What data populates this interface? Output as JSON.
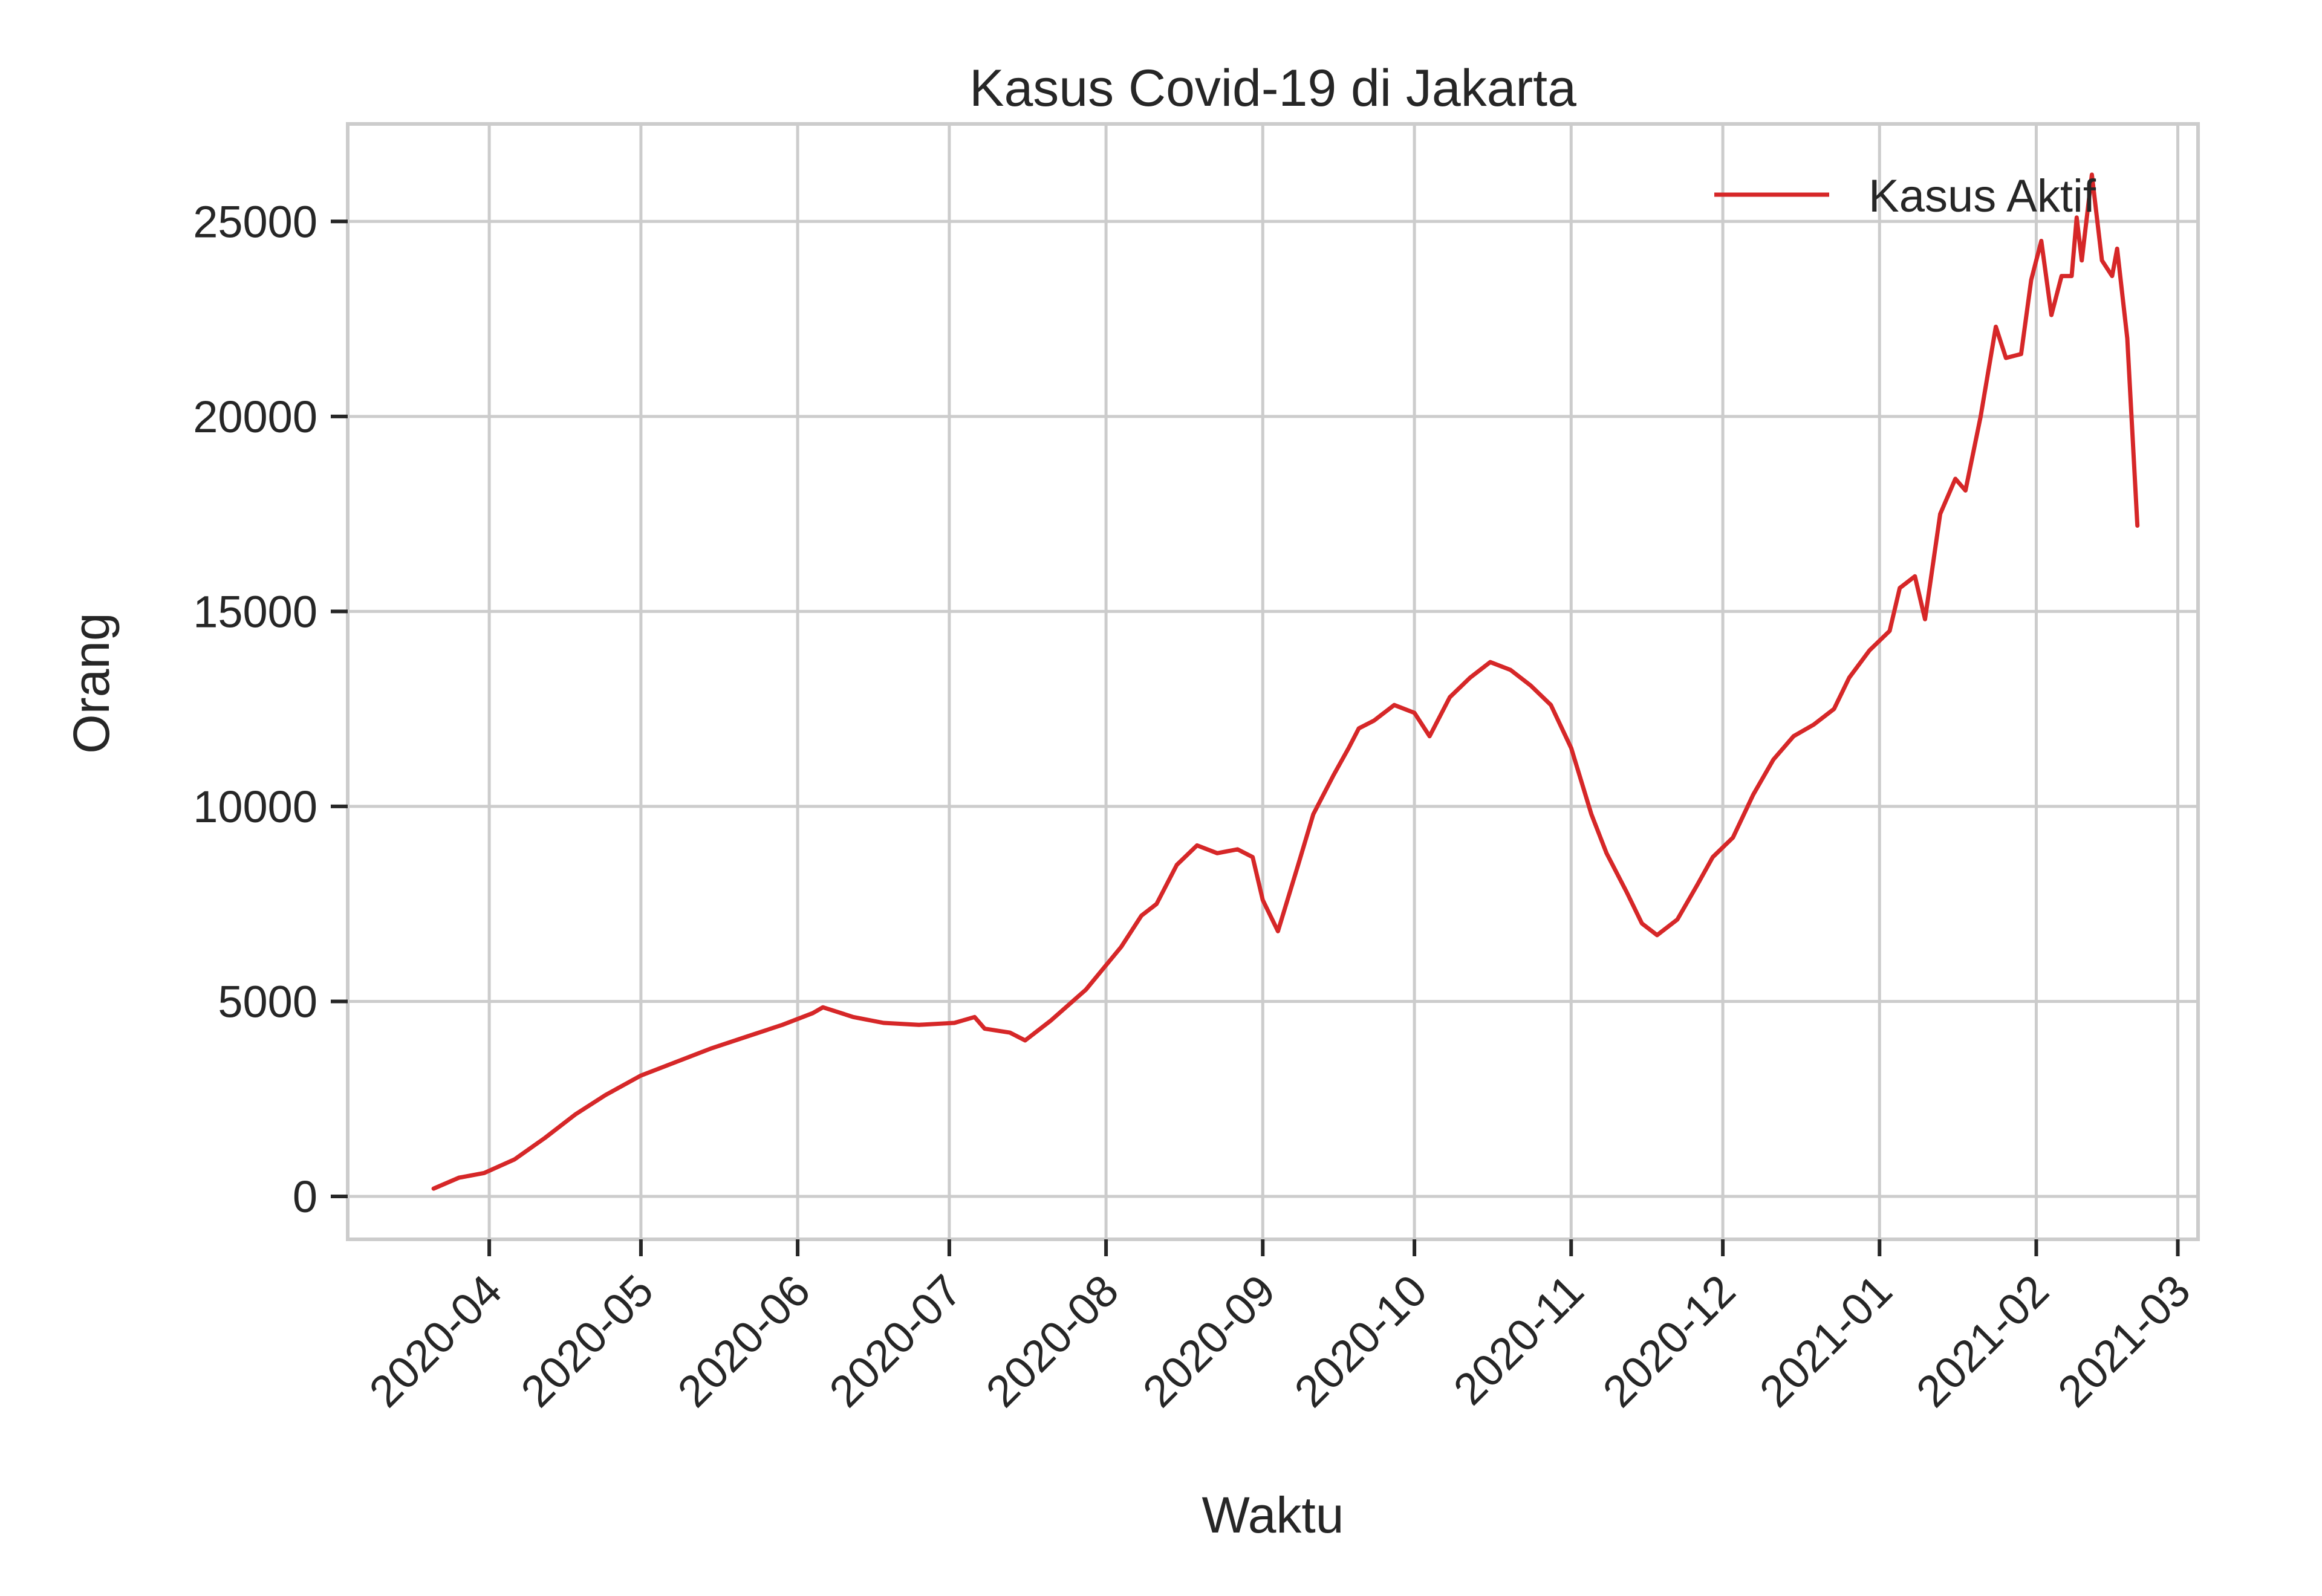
{
  "chart_data": {
    "type": "line",
    "title": "Kasus Covid-19 di Jakarta",
    "xlabel": "Waktu",
    "ylabel": "Orang",
    "xlim": [
      "2020-03-04",
      "2021-03-05"
    ],
    "ylim": [
      -1100,
      27500
    ],
    "x_ticks": [
      "2020-04",
      "2020-05",
      "2020-06",
      "2020-07",
      "2020-08",
      "2020-09",
      "2020-10",
      "2020-11",
      "2020-12",
      "2021-01",
      "2021-02",
      "2021-03"
    ],
    "y_ticks": [
      0,
      5000,
      10000,
      15000,
      20000,
      25000
    ],
    "grid": true,
    "legend": "top-right",
    "colors": {
      "line": "#d62728",
      "grid": "#cccccc",
      "spine": "#cccccc",
      "text": "#262626"
    },
    "series": [
      {
        "name": "Kasus Aktif",
        "points": [
          [
            "2020-03-21",
            200
          ],
          [
            "2020-03-26",
            480
          ],
          [
            "2020-03-31",
            600
          ],
          [
            "2020-04-06",
            950
          ],
          [
            "2020-04-12",
            1500
          ],
          [
            "2020-04-18",
            2100
          ],
          [
            "2020-04-24",
            2600
          ],
          [
            "2020-05-01",
            3100
          ],
          [
            "2020-05-08",
            3450
          ],
          [
            "2020-05-15",
            3800
          ],
          [
            "2020-05-22",
            4100
          ],
          [
            "2020-05-29",
            4400
          ],
          [
            "2020-06-04",
            4700
          ],
          [
            "2020-06-06",
            4850
          ],
          [
            "2020-06-12",
            4600
          ],
          [
            "2020-06-18",
            4450
          ],
          [
            "2020-06-25",
            4400
          ],
          [
            "2020-07-02",
            4450
          ],
          [
            "2020-07-06",
            4600
          ],
          [
            "2020-07-08",
            4300
          ],
          [
            "2020-07-13",
            4200
          ],
          [
            "2020-07-16",
            4000
          ],
          [
            "2020-07-21",
            4500
          ],
          [
            "2020-07-28",
            5300
          ],
          [
            "2020-08-04",
            6400
          ],
          [
            "2020-08-08",
            7200
          ],
          [
            "2020-08-11",
            7500
          ],
          [
            "2020-08-15",
            8500
          ],
          [
            "2020-08-19",
            9000
          ],
          [
            "2020-08-23",
            8800
          ],
          [
            "2020-08-27",
            8900
          ],
          [
            "2020-08-30",
            8700
          ],
          [
            "2020-09-01",
            7600
          ],
          [
            "2020-09-04",
            6800
          ],
          [
            "2020-09-08",
            8500
          ],
          [
            "2020-09-11",
            9800
          ],
          [
            "2020-09-15",
            10800
          ],
          [
            "2020-09-18",
            11500
          ],
          [
            "2020-09-20",
            12000
          ],
          [
            "2020-09-23",
            12200
          ],
          [
            "2020-09-27",
            12600
          ],
          [
            "2020-10-01",
            12400
          ],
          [
            "2020-10-04",
            11800
          ],
          [
            "2020-10-08",
            12800
          ],
          [
            "2020-10-12",
            13300
          ],
          [
            "2020-10-16",
            13700
          ],
          [
            "2020-10-20",
            13500
          ],
          [
            "2020-10-24",
            13100
          ],
          [
            "2020-10-28",
            12600
          ],
          [
            "2020-11-01",
            11500
          ],
          [
            "2020-11-05",
            9800
          ],
          [
            "2020-11-08",
            8800
          ],
          [
            "2020-11-12",
            7800
          ],
          [
            "2020-11-15",
            7000
          ],
          [
            "2020-11-18",
            6700
          ],
          [
            "2020-11-22",
            7100
          ],
          [
            "2020-11-26",
            8000
          ],
          [
            "2020-11-29",
            8700
          ],
          [
            "2020-12-03",
            9200
          ],
          [
            "2020-12-07",
            10300
          ],
          [
            "2020-12-11",
            11200
          ],
          [
            "2020-12-15",
            11800
          ],
          [
            "2020-12-19",
            12100
          ],
          [
            "2020-12-23",
            12500
          ],
          [
            "2020-12-26",
            13300
          ],
          [
            "2020-12-30",
            14000
          ],
          [
            "2021-01-03",
            14500
          ],
          [
            "2021-01-05",
            15600
          ],
          [
            "2021-01-08",
            15900
          ],
          [
            "2021-01-10",
            14800
          ],
          [
            "2021-01-13",
            17500
          ],
          [
            "2021-01-16",
            18400
          ],
          [
            "2021-01-18",
            18100
          ],
          [
            "2021-01-21",
            20000
          ],
          [
            "2021-01-24",
            22300
          ],
          [
            "2021-01-26",
            21500
          ],
          [
            "2021-01-29",
            21600
          ],
          [
            "2021-01-31",
            23500
          ],
          [
            "2021-02-02",
            24500
          ],
          [
            "2021-02-04",
            22600
          ],
          [
            "2021-02-06",
            23600
          ],
          [
            "2021-02-08",
            23600
          ],
          [
            "2021-02-09",
            25100
          ],
          [
            "2021-02-10",
            24000
          ],
          [
            "2021-02-12",
            26200
          ],
          [
            "2021-02-14",
            24000
          ],
          [
            "2021-02-16",
            23600
          ],
          [
            "2021-02-17",
            24300
          ],
          [
            "2021-02-19",
            22000
          ],
          [
            "2021-02-21",
            17200
          ]
        ]
      }
    ]
  }
}
